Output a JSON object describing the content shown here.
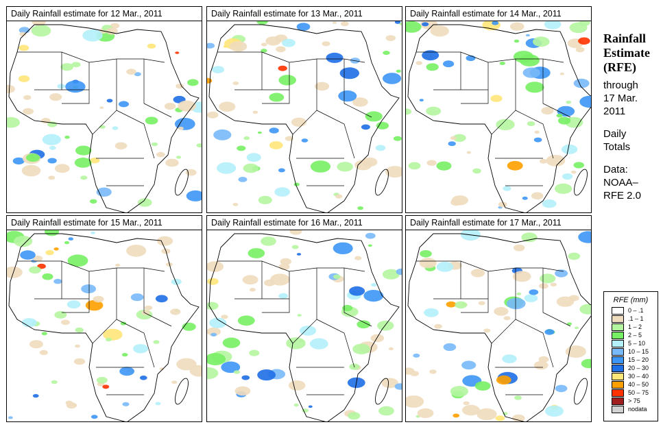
{
  "panels": [
    {
      "title": "Daily Rainfall estimate for  12 Mar., 2011"
    },
    {
      "title": "Daily Rainfall estimate for  13 Mar., 2011"
    },
    {
      "title": "Daily Rainfall estimate for  14 Mar., 2011"
    },
    {
      "title": "Daily Rainfall estimate for  15 Mar., 2011"
    },
    {
      "title": "Daily Rainfall estimate for  16 Mar., 2011"
    },
    {
      "title": "Daily Rainfall estimate for  17 Mar., 2011"
    }
  ],
  "side": {
    "title1": "Rainfall",
    "title2": "Estimate",
    "title3": "(RFE)",
    "through": "through",
    "date1": "17 Mar.",
    "date2": "2011",
    "daily": "Daily",
    "totals": "Totals",
    "data": "Data:",
    "source1": "NOAA–",
    "source2": "RFE 2.0"
  },
  "legend": {
    "title": "RFE (mm)",
    "items": [
      {
        "label": "0 – .1",
        "color": "#ffffff"
      },
      {
        "label": ".1 – 1",
        "color": "#f0dcbe"
      },
      {
        "label": "1 – 2",
        "color": "#b4f5a0"
      },
      {
        "label": "2 – 5",
        "color": "#78f064"
      },
      {
        "label": "5 – 10",
        "color": "#b4f0fa"
      },
      {
        "label": "10 – 15",
        "color": "#78b9fa"
      },
      {
        "label": "15 – 20",
        "color": "#3c96f5"
      },
      {
        "label": "20 – 30",
        "color": "#1e6ee6"
      },
      {
        "label": "30 – 40",
        "color": "#ffe678"
      },
      {
        "label": "40 – 50",
        "color": "#ffa000"
      },
      {
        "label": "50 – 75",
        "color": "#ff3200"
      },
      {
        "label": "> 75",
        "color": "#a01e1e"
      },
      {
        "label": "nodata",
        "color": "#d2d2d2"
      }
    ]
  }
}
